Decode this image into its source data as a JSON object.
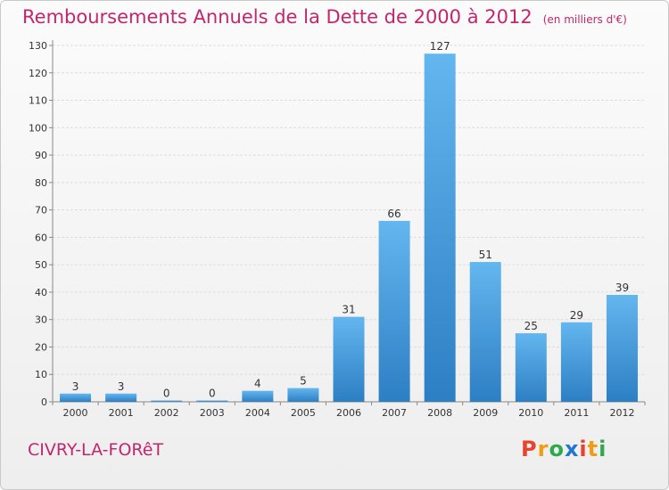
{
  "header": {
    "title": "Remboursements Annuels de la Dette de 2000 à 2012",
    "unit": "(en milliers d'€)"
  },
  "footer": {
    "place": "CIVRY-LA-FORêT",
    "logo": [
      "P",
      "r",
      "o",
      "x",
      "i",
      "t",
      "i"
    ]
  },
  "colors": {
    "title": "#c2266d",
    "bar_top": "#63b6ee",
    "bar_bottom": "#2d7fc4",
    "grid": "#dddddd",
    "axis": "#888888",
    "logo": [
      "#e8432d",
      "#f39c12",
      "#2eaa4a",
      "#1f77d0",
      "#e8432d",
      "#f39c12",
      "#2eaa4a"
    ]
  },
  "chart_data": {
    "type": "bar",
    "categories": [
      "2000",
      "2001",
      "2002",
      "2003",
      "2004",
      "2005",
      "2006",
      "2007",
      "2008",
      "2009",
      "2010",
      "2011",
      "2012"
    ],
    "values": [
      3,
      3,
      0,
      0,
      4,
      5,
      31,
      66,
      127,
      51,
      25,
      29,
      39
    ],
    "title": "Remboursements Annuels de la Dette de 2000 à 2012",
    "unit": "(en milliers d'€)",
    "ylim": [
      0,
      130
    ],
    "yticks": [
      0,
      10,
      20,
      30,
      40,
      50,
      60,
      70,
      80,
      90,
      100,
      110,
      120,
      130
    ],
    "grid": true,
    "data_labels": true
  }
}
